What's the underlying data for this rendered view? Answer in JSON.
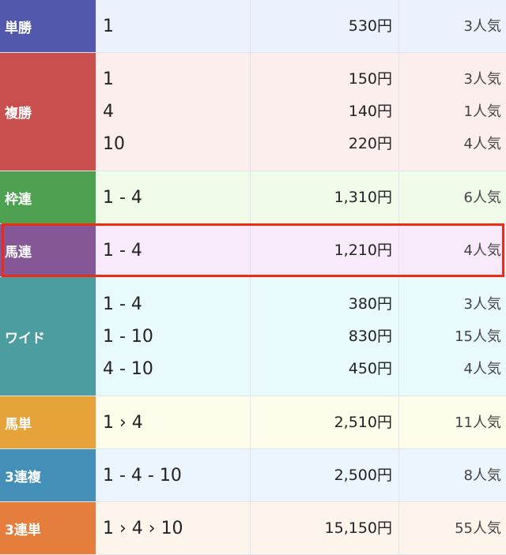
{
  "rows": [
    {
      "type": "単勝",
      "color": "#5259ad",
      "bg": "#ecf2fd",
      "combos": [
        "1"
      ],
      "payouts": [
        "530円"
      ],
      "popularity": [
        "3人気"
      ]
    },
    {
      "type": "複勝",
      "color": "#c94f4f",
      "bg": "#fdeeee",
      "combos": [
        "1",
        "4",
        "10"
      ],
      "payouts": [
        "150円",
        "140円",
        "220円"
      ],
      "popularity": [
        "3人気",
        "1人気",
        "4人気"
      ]
    },
    {
      "type": "枠連",
      "color": "#4fa152",
      "bg": "#f0fbea",
      "combos": [
        "1 - 4"
      ],
      "payouts": [
        "1,310円"
      ],
      "popularity": [
        "6人気"
      ]
    },
    {
      "type": "馬連",
      "color": "#855796",
      "bg": "#f8eafb",
      "combos": [
        "1 - 4"
      ],
      "payouts": [
        "1,210円"
      ],
      "popularity": [
        "4人気"
      ],
      "highlighted": true
    },
    {
      "type": "ワイド",
      "color": "#4b9da0",
      "bg": "#e9fafc",
      "combos": [
        "1 - 4",
        "1 - 10",
        "4 - 10"
      ],
      "payouts": [
        "380円",
        "830円",
        "450円"
      ],
      "popularity": [
        "3人気",
        "15人気",
        "4人気"
      ]
    },
    {
      "type": "馬単",
      "color": "#e5a33a",
      "bg": "#fefcea",
      "combos": [
        "1 › 4"
      ],
      "payouts": [
        "2,510円"
      ],
      "popularity": [
        "11人気"
      ]
    },
    {
      "type": "3連複",
      "color": "#438fb8",
      "bg": "#ebf5fd",
      "combos": [
        "1 - 4 - 10"
      ],
      "payouts": [
        "2,500円"
      ],
      "popularity": [
        "8人気"
      ]
    },
    {
      "type": "3連単",
      "color": "#e57d3c",
      "bg": "#fdf5ec",
      "combos": [
        "1 › 4 › 10"
      ],
      "payouts": [
        "15,150円"
      ],
      "popularity": [
        "55人気"
      ]
    }
  ],
  "highlight_color": "#f02a14"
}
